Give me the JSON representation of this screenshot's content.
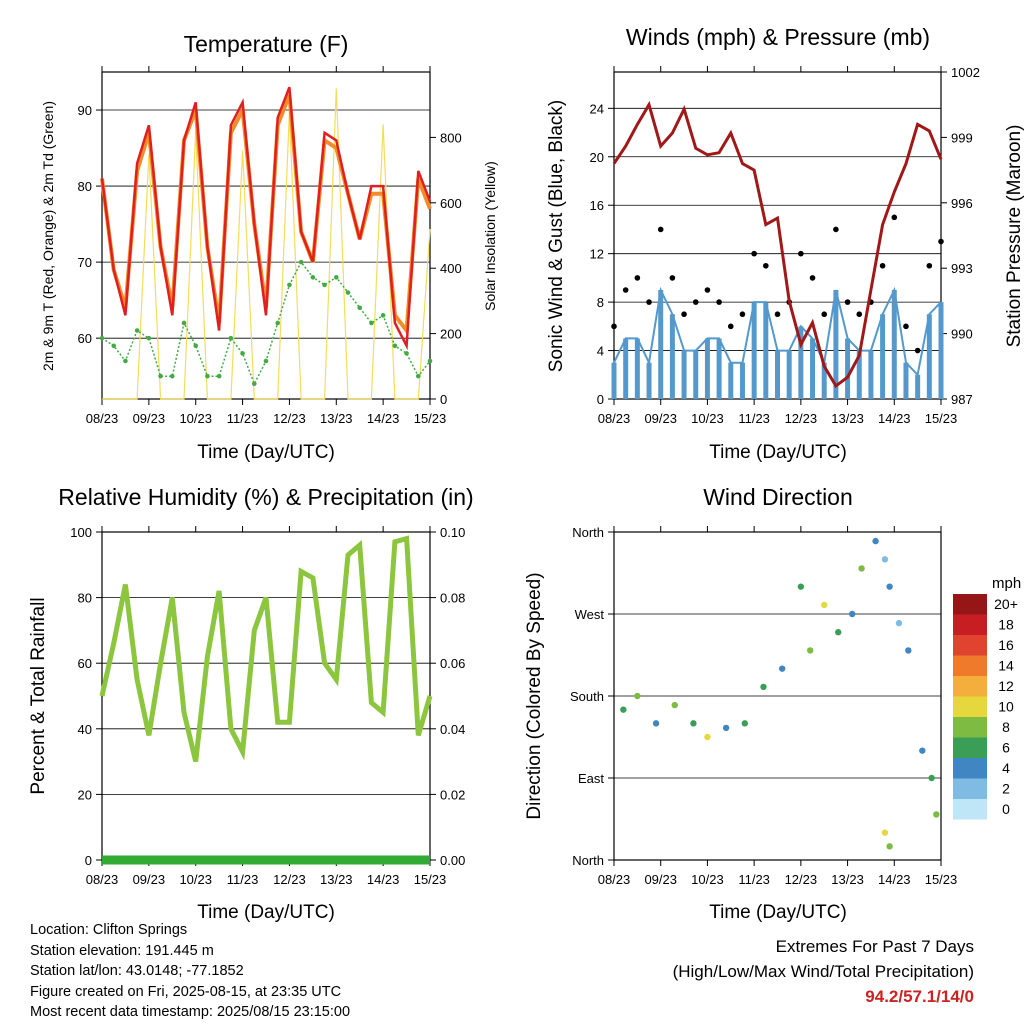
{
  "time_ticks": [
    "08/23",
    "09/23",
    "10/23",
    "11/23",
    "12/23",
    "13/23",
    "14/23",
    "15/23"
  ],
  "colors": {
    "t2m": "#e02020",
    "t9m": "#f28c28",
    "td": "#44aa44",
    "solar": "#f5dc5a",
    "wind": "#5599cc",
    "gust": "#000000",
    "pressure": "#a01818",
    "rh": "#8cc63f",
    "precip": "#33aa33"
  },
  "wind_speed_palette": [
    "#bfe6f7",
    "#7fbbe3",
    "#3f86c2",
    "#3a9e57",
    "#7dbb42",
    "#e6d83c",
    "#f4ae3c",
    "#ef7a2c",
    "#e04430",
    "#c61e22",
    "#961618"
  ],
  "info": {
    "location": "Location: Clifton Springs",
    "elevation": "Station elevation: 191.445 m",
    "latlon": "Station lat/lon: 43.0148; -77.1852",
    "created": "Figure created on Fri, 2025-08-15, at 23:35 UTC",
    "recent": "Most recent data timestamp: 2025/08/15 23:15:00"
  },
  "extremes": {
    "title": "Extremes For Past 7 Days",
    "subtitle": "(High/Low/Max Wind/Total Precipitation)",
    "values": "94.2/57.1/14/0"
  },
  "chart_data": [
    {
      "type": "line",
      "title": "Temperature (F)",
      "xlabel": "Time (Day/UTC)",
      "ylabel": "2m & 9m T (Red, Orange) & 2m Td (Green)",
      "y2label": "Solar Insolation (Yellow)",
      "x_ticks": [
        "08/23",
        "09/23",
        "10/23",
        "11/23",
        "12/23",
        "13/23",
        "14/23",
        "15/23"
      ],
      "ylim": [
        52,
        95
      ],
      "yticks": [
        60,
        70,
        80,
        90
      ],
      "y2lim": [
        0,
        1000
      ],
      "y2ticks": [
        0,
        200,
        400,
        600,
        800
      ],
      "grid": true,
      "x": [
        0,
        0.25,
        0.5,
        0.75,
        1,
        1.25,
        1.5,
        1.75,
        2,
        2.25,
        2.5,
        2.75,
        3,
        3.25,
        3.5,
        3.75,
        4,
        4.25,
        4.5,
        4.75,
        5,
        5.25,
        5.5,
        5.75,
        6,
        6.25,
        6.5,
        6.75,
        7
      ],
      "series": [
        {
          "name": "2m T",
          "values": [
            81,
            69,
            63,
            83,
            88,
            72,
            63,
            86,
            91,
            72,
            61,
            88,
            91,
            75,
            63,
            89,
            93,
            74,
            70,
            87,
            86,
            79,
            73,
            80,
            80,
            62,
            59,
            82,
            78
          ]
        },
        {
          "name": "9m T",
          "values": [
            81,
            69,
            64,
            82,
            87,
            72,
            64,
            86,
            90,
            72,
            62,
            87,
            90,
            75,
            64,
            88,
            92,
            74,
            70,
            86,
            85,
            79,
            73,
            79,
            79,
            63,
            61,
            81,
            77
          ]
        },
        {
          "name": "2m Td",
          "values": [
            60,
            59,
            57,
            61,
            60,
            55,
            55,
            62,
            59,
            55,
            55,
            60,
            58,
            54,
            57,
            62,
            67,
            70,
            68,
            67,
            68,
            66,
            64,
            62,
            63,
            59,
            58,
            55,
            57
          ]
        },
        {
          "name": "Solar",
          "values": [
            0,
            0,
            0,
            0,
            750,
            0,
            0,
            0,
            820,
            0,
            0,
            0,
            760,
            0,
            0,
            0,
            880,
            0,
            0,
            0,
            950,
            0,
            0,
            0,
            840,
            0,
            0,
            0,
            520
          ]
        }
      ]
    },
    {
      "type": "line",
      "title": "Winds (mph) & Pressure (mb)",
      "xlabel": "Time (Day/UTC)",
      "ylabel": "Sonic Wind & Gust (Blue, Black)",
      "y2label": "Station Pressure (Maroon)",
      "x_ticks": [
        "08/23",
        "09/23",
        "10/23",
        "11/23",
        "12/23",
        "13/23",
        "14/23",
        "15/23"
      ],
      "ylim": [
        0,
        27
      ],
      "yticks": [
        0,
        4,
        8,
        12,
        16,
        20,
        24
      ],
      "y2lim": [
        987,
        1002
      ],
      "y2ticks": [
        987,
        990,
        993,
        996,
        999,
        1002
      ],
      "grid": true,
      "x": [
        0,
        0.25,
        0.5,
        0.75,
        1,
        1.25,
        1.5,
        1.75,
        2,
        2.25,
        2.5,
        2.75,
        3,
        3.25,
        3.5,
        3.75,
        4,
        4.25,
        4.5,
        4.75,
        5,
        5.25,
        5.5,
        5.75,
        6,
        6.25,
        6.5,
        6.75,
        7
      ],
      "series": [
        {
          "name": "Wind",
          "values": [
            3,
            5,
            5,
            3,
            9,
            7,
            4,
            4,
            5,
            5,
            3,
            3,
            8,
            8,
            4,
            4,
            6,
            5,
            3,
            9,
            5,
            4,
            4,
            7,
            9,
            3,
            2,
            7,
            8
          ]
        },
        {
          "name": "Gust",
          "values": [
            6,
            9,
            10,
            8,
            14,
            10,
            7,
            8,
            9,
            8,
            6,
            7,
            12,
            11,
            7,
            8,
            12,
            10,
            7,
            14,
            8,
            7,
            8,
            11,
            15,
            6,
            4,
            11,
            13
          ]
        },
        {
          "name": "Pressure",
          "values": [
            997.8,
            998.6,
            999.6,
            1000.5,
            998.6,
            999.2,
            1000.3,
            998.5,
            998.2,
            998.3,
            999.2,
            997.8,
            997.5,
            995.0,
            995.3,
            991.5,
            989.5,
            990.5,
            988.5,
            987.6,
            988.0,
            989.0,
            992.0,
            995.0,
            996.5,
            997.8,
            999.6,
            999.3,
            998.0
          ]
        }
      ]
    },
    {
      "type": "line",
      "title": "Relative Humidity (%) & Precipitation (in)",
      "xlabel": "Time (Day/UTC)",
      "ylabel": "Percent & Total Rainfall",
      "x_ticks": [
        "08/23",
        "09/23",
        "10/23",
        "11/23",
        "12/23",
        "13/23",
        "14/23",
        "15/23"
      ],
      "ylim": [
        0,
        100
      ],
      "yticks": [
        0,
        20,
        40,
        60,
        80,
        100
      ],
      "y2lim": [
        0,
        0.1
      ],
      "y2ticks": [
        "0.00",
        "0.02",
        "0.04",
        "0.06",
        "0.08",
        "0.10"
      ],
      "grid": true,
      "x": [
        0,
        0.25,
        0.5,
        0.75,
        1,
        1.25,
        1.5,
        1.75,
        2,
        2.25,
        2.5,
        2.75,
        3,
        3.25,
        3.5,
        3.75,
        4,
        4.25,
        4.5,
        4.75,
        5,
        5.25,
        5.5,
        5.75,
        6,
        6.25,
        6.5,
        6.75,
        7
      ],
      "series": [
        {
          "name": "RH",
          "values": [
            50,
            66,
            84,
            55,
            38,
            60,
            80,
            45,
            30,
            62,
            82,
            40,
            33,
            70,
            80,
            42,
            42,
            88,
            86,
            60,
            55,
            93,
            96,
            48,
            45,
            97,
            98,
            38,
            50
          ]
        },
        {
          "name": "Precip",
          "values": [
            0,
            0,
            0,
            0,
            0,
            0,
            0,
            0,
            0,
            0,
            0,
            0,
            0,
            0,
            0,
            0,
            0,
            0,
            0,
            0,
            0,
            0,
            0,
            0,
            0,
            0,
            0,
            0,
            0
          ]
        }
      ]
    },
    {
      "type": "scatter",
      "title": "Wind Direction",
      "xlabel": "Time (Day/UTC)",
      "ylabel": "Direction (Colored By Speed)",
      "x_ticks": [
        "08/23",
        "09/23",
        "10/23",
        "11/23",
        "12/23",
        "13/23",
        "14/23",
        "15/23"
      ],
      "y_categories": [
        "North",
        "East",
        "South",
        "West",
        "North"
      ],
      "ylim": [
        0,
        360
      ],
      "legend_title": "mph",
      "legend_labels": [
        "20+",
        "18",
        "16",
        "14",
        "12",
        "10",
        "8",
        "6",
        "4",
        "2",
        "0"
      ],
      "points": [
        [
          0.2,
          165,
          6
        ],
        [
          0.5,
          180,
          7
        ],
        [
          0.9,
          150,
          4
        ],
        [
          1.3,
          170,
          8
        ],
        [
          1.7,
          150,
          5
        ],
        [
          2.0,
          135,
          9
        ],
        [
          2.4,
          145,
          3
        ],
        [
          2.8,
          150,
          5
        ],
        [
          3.2,
          190,
          6
        ],
        [
          3.6,
          210,
          4
        ],
        [
          4.0,
          300,
          5
        ],
        [
          4.2,
          230,
          7
        ],
        [
          4.5,
          280,
          9
        ],
        [
          4.8,
          250,
          5
        ],
        [
          5.1,
          270,
          4
        ],
        [
          5.3,
          320,
          8
        ],
        [
          5.6,
          350,
          3
        ],
        [
          5.8,
          330,
          2
        ],
        [
          5.9,
          300,
          3
        ],
        [
          6.1,
          260,
          2
        ],
        [
          6.3,
          230,
          3
        ],
        [
          6.6,
          120,
          4
        ],
        [
          6.8,
          90,
          6
        ],
        [
          6.9,
          50,
          7
        ],
        [
          5.8,
          30,
          9
        ],
        [
          5.9,
          15,
          8
        ]
      ]
    }
  ]
}
